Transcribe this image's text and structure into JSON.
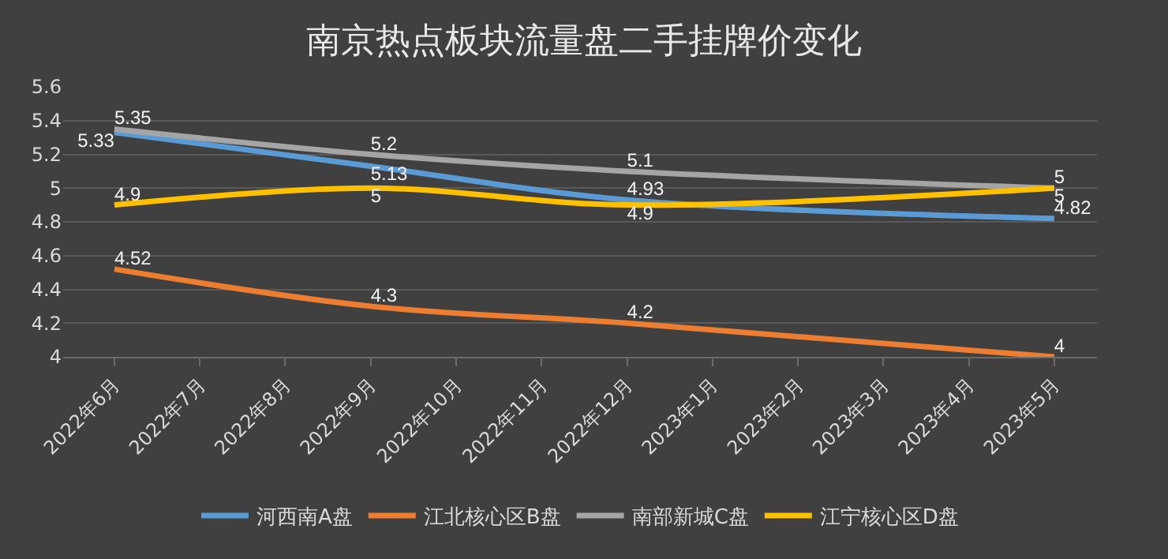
{
  "chart_data": {
    "type": "line",
    "title": "南京热点板块流量盘二手挂牌价变化",
    "categories": [
      "2022年6月",
      "2022年7月",
      "2022年8月",
      "2022年9月",
      "2022年10月",
      "2022年11月",
      "2022年12月",
      "2023年1月",
      "2023年2月",
      "2023年3月",
      "2023年4月",
      "2023年5月"
    ],
    "series": [
      {
        "name": "河西南A盘",
        "color": "#5b9bd5",
        "values": [
          5.33,
          null,
          null,
          5.13,
          null,
          null,
          4.93,
          null,
          null,
          null,
          null,
          4.82
        ]
      },
      {
        "name": "江北核心区B盘",
        "color": "#ed7d31",
        "values": [
          4.52,
          null,
          null,
          4.3,
          null,
          null,
          4.2,
          null,
          null,
          null,
          null,
          4
        ]
      },
      {
        "name": "南部新城C盘",
        "color": "#a5a5a5",
        "values": [
          5.35,
          null,
          null,
          5.2,
          null,
          null,
          5.1,
          null,
          null,
          null,
          null,
          5
        ]
      },
      {
        "name": "江宁核心区D盘",
        "color": "#ffc000",
        "values": [
          4.9,
          null,
          null,
          5,
          null,
          null,
          4.9,
          null,
          null,
          null,
          null,
          5
        ]
      }
    ],
    "ylim": [
      4,
      5.6
    ],
    "yticks": [
      4,
      4.2,
      4.4,
      4.6,
      4.8,
      5,
      5.2,
      5.4,
      5.6
    ],
    "grid": "y",
    "legend": "bottom",
    "data_labels": true,
    "marker": "none",
    "line_style": "solid"
  }
}
